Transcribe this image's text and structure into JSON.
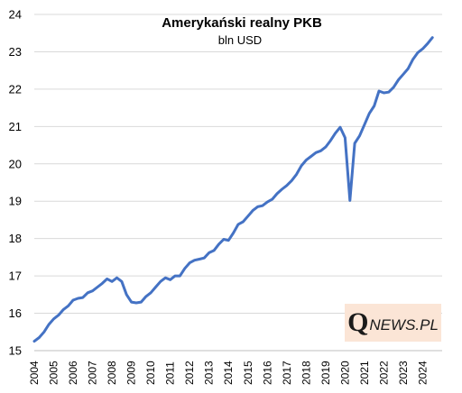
{
  "chart_data": {
    "type": "line",
    "title": "Amerykański realny PKB",
    "subtitle": "bln USD",
    "xlabel": "",
    "ylabel": "",
    "ylim": [
      15,
      24
    ],
    "yticks": [
      15,
      16,
      17,
      18,
      19,
      20,
      21,
      22,
      23,
      24
    ],
    "xlim": [
      2004,
      2025
    ],
    "xticks": [
      "2004",
      "2005",
      "2006",
      "2007",
      "2008",
      "2009",
      "2010",
      "2011",
      "2012",
      "2013",
      "2014",
      "2015",
      "2016",
      "2017",
      "2018",
      "2019",
      "2020",
      "2021",
      "2022",
      "2023",
      "2024"
    ],
    "grid": "horizontal",
    "legend": "none",
    "colors": {
      "series": "#4472c4",
      "grid": "#d9d9d9",
      "logo_bg": "#fbe5d6"
    },
    "series": [
      {
        "name": "",
        "x": [
          2004.0,
          2004.25,
          2004.5,
          2004.75,
          2005.0,
          2005.25,
          2005.5,
          2005.75,
          2006.0,
          2006.25,
          2006.5,
          2006.75,
          2007.0,
          2007.25,
          2007.5,
          2007.75,
          2008.0,
          2008.25,
          2008.5,
          2008.75,
          2009.0,
          2009.25,
          2009.5,
          2009.75,
          2010.0,
          2010.25,
          2010.5,
          2010.75,
          2011.0,
          2011.25,
          2011.5,
          2011.75,
          2012.0,
          2012.25,
          2012.5,
          2012.75,
          2013.0,
          2013.25,
          2013.5,
          2013.75,
          2014.0,
          2014.25,
          2014.5,
          2014.75,
          2015.0,
          2015.25,
          2015.5,
          2015.75,
          2016.0,
          2016.25,
          2016.5,
          2016.75,
          2017.0,
          2017.25,
          2017.5,
          2017.75,
          2018.0,
          2018.25,
          2018.5,
          2018.75,
          2019.0,
          2019.25,
          2019.5,
          2019.75,
          2020.0,
          2020.25,
          2020.5,
          2020.75,
          2021.0,
          2021.25,
          2021.5,
          2021.75,
          2022.0,
          2022.25,
          2022.5,
          2022.75,
          2023.0,
          2023.25,
          2023.5,
          2023.75,
          2024.0,
          2024.25,
          2024.5
        ],
        "values": [
          15.25,
          15.35,
          15.5,
          15.7,
          15.85,
          15.95,
          16.1,
          16.2,
          16.35,
          16.4,
          16.42,
          16.55,
          16.6,
          16.7,
          16.8,
          16.92,
          16.85,
          16.95,
          16.85,
          16.5,
          16.3,
          16.28,
          16.3,
          16.45,
          16.55,
          16.7,
          16.85,
          16.95,
          16.9,
          17.0,
          17.0,
          17.2,
          17.35,
          17.42,
          17.45,
          17.48,
          17.62,
          17.68,
          17.85,
          17.98,
          17.95,
          18.15,
          18.38,
          18.45,
          18.6,
          18.75,
          18.85,
          18.88,
          18.98,
          19.05,
          19.2,
          19.32,
          19.42,
          19.55,
          19.72,
          19.95,
          20.1,
          20.2,
          20.3,
          20.35,
          20.45,
          20.62,
          20.82,
          20.98,
          20.7,
          19.02,
          20.55,
          20.75,
          21.05,
          21.35,
          21.55,
          21.95,
          21.9,
          21.92,
          22.05,
          22.25,
          22.4,
          22.55,
          22.8,
          22.98,
          23.08,
          23.22,
          23.38
        ]
      }
    ]
  },
  "watermark": {
    "q": "Q",
    "rest": "NEWS.PL"
  }
}
